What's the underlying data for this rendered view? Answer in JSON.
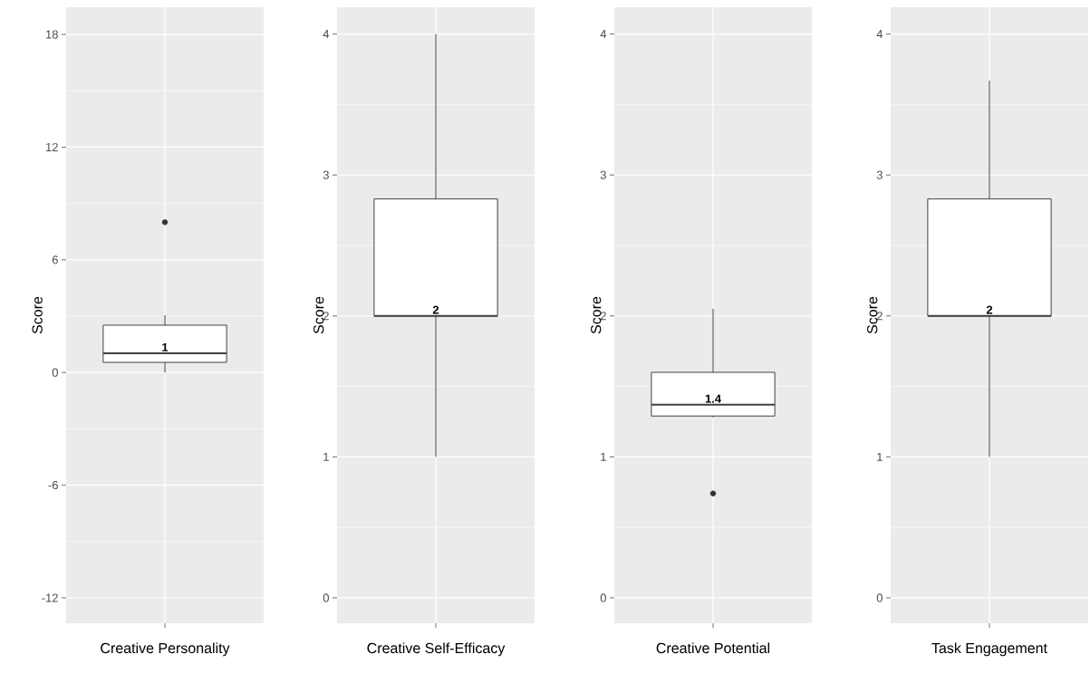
{
  "chart_data": [
    {
      "type": "box",
      "categories": [
        null
      ],
      "xlabel": "Creative Personality",
      "ylabel": "Score",
      "ylim": [
        -13.35,
        19.45
      ],
      "yticks": [
        -12,
        -6,
        0,
        6,
        12,
        18
      ],
      "grid": true,
      "boxes": [
        {
          "low": 0,
          "q1": 0.54,
          "median": 1.02,
          "q3": 2.52,
          "high": 3.05,
          "outliers": [
            8
          ]
        }
      ],
      "annotations": [
        "1"
      ]
    },
    {
      "type": "box",
      "categories": [
        null
      ],
      "xlabel": "Creative Self-Efficacy",
      "ylabel": "Score",
      "ylim": [
        -0.18,
        4.19
      ],
      "yticks": [
        0,
        1,
        2,
        3,
        4
      ],
      "grid": true,
      "boxes": [
        {
          "low": 1,
          "q1": 2,
          "median": 2,
          "q3": 2.83,
          "high": 4
        }
      ],
      "annotations": [
        "2"
      ]
    },
    {
      "type": "box",
      "categories": [
        null
      ],
      "xlabel": "Creative Potential",
      "ylabel": "Score",
      "ylim": [
        -0.18,
        4.19
      ],
      "yticks": [
        0,
        1,
        2,
        3,
        4
      ],
      "grid": true,
      "boxes": [
        {
          "low": 1.28,
          "q1": 1.29,
          "median": 1.37,
          "q3": 1.6,
          "high": 2.05,
          "outliers": [
            0.74
          ]
        }
      ],
      "annotations": [
        "1.4"
      ]
    },
    {
      "type": "box",
      "categories": [
        null
      ],
      "xlabel": "Task Engagement",
      "ylabel": "Score",
      "ylim": [
        -0.18,
        4.19
      ],
      "yticks": [
        0,
        1,
        2,
        3,
        4
      ],
      "grid": true,
      "boxes": [
        {
          "low": 1,
          "q1": 2,
          "median": 2,
          "q3": 2.83,
          "high": 3.67
        }
      ],
      "annotations": [
        "2"
      ]
    }
  ]
}
